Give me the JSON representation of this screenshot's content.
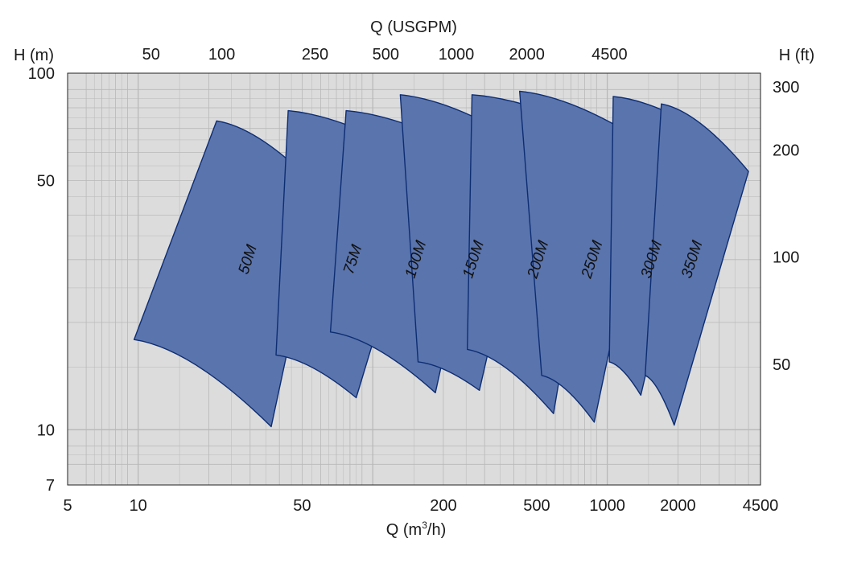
{
  "chart_data": {
    "type": "area",
    "scale": "log-log",
    "grid": true,
    "colors": {
      "plot_bg": "#dcdcdc",
      "grid": "#b8b8b8",
      "area_fill": "#5a74ad",
      "area_stroke": "#0d2d73"
    },
    "x_axis": {
      "label": "Q (m³/h)",
      "label_base": "Q (m",
      "label_sup": "3",
      "label_end": "/h)",
      "range": [
        5,
        4500
      ],
      "ticks": [
        "5",
        "10",
        "50",
        "200",
        "500",
        "1000",
        "2000",
        "4500"
      ],
      "tick_values": [
        5,
        10,
        50,
        200,
        500,
        1000,
        2000,
        4500
      ]
    },
    "x2_axis": {
      "label": "Q (USGPM)",
      "ticks": [
        "50",
        "100",
        "250",
        "500",
        "1000",
        "2000",
        "4500"
      ],
      "tick_values": [
        50,
        100,
        250,
        500,
        1000,
        2000,
        4500
      ]
    },
    "y_axis": {
      "label": "H (m)",
      "range": [
        7,
        100
      ],
      "ticks": [
        "100",
        "50",
        "10",
        "7"
      ],
      "tick_values": [
        100,
        50,
        10,
        7
      ]
    },
    "y2_axis": {
      "label": "H (ft)",
      "ticks": [
        "300",
        "200",
        "100",
        "50"
      ],
      "tick_values": [
        300,
        200,
        100,
        50
      ]
    },
    "series": [
      {
        "name": "50M",
        "q_min_lowH": 9.6,
        "h_min": 17.9,
        "q_max_lowH": 36.9,
        "h_bottom": 10.2,
        "q_min_highH": 21.6,
        "h_max": 73.5,
        "q_max_highH": 60.5,
        "h_right": 46.5
      },
      {
        "name": "75M",
        "q_min_lowH": 38.7,
        "h_min": 16.2,
        "q_max_lowH": 85,
        "h_bottom": 12.3,
        "q_min_highH": 43.6,
        "h_max": 78.5,
        "q_max_highH": 170,
        "h_right": 55.5
      },
      {
        "name": "100M",
        "q_min_lowH": 66,
        "h_min": 18.8,
        "q_max_lowH": 185,
        "h_bottom": 12.7,
        "q_min_highH": 77,
        "h_max": 78.5,
        "q_max_highH": 305,
        "h_right": 56.5
      },
      {
        "name": "150M",
        "q_min_lowH": 156,
        "h_min": 15.5,
        "q_max_lowH": 285,
        "h_bottom": 12.9,
        "q_min_highH": 131,
        "h_max": 87,
        "q_max_highH": 488,
        "h_right": 60.5
      },
      {
        "name": "200M",
        "q_min_lowH": 253,
        "h_min": 16.8,
        "q_max_lowH": 590,
        "h_bottom": 11.1,
        "q_min_highH": 265,
        "h_max": 87,
        "q_max_highH": 935,
        "h_right": 67.5
      },
      {
        "name": "250M",
        "q_min_lowH": 525,
        "h_min": 14.2,
        "q_max_lowH": 880,
        "h_bottom": 10.5,
        "q_min_highH": 423,
        "h_max": 89,
        "q_max_highH": 1550,
        "h_right": 62
      },
      {
        "name": "300M",
        "q_min_lowH": 1020,
        "h_min": 15.5,
        "q_max_lowH": 1390,
        "h_bottom": 12.5,
        "q_min_highH": 1060,
        "h_max": 86,
        "q_max_highH": 2550,
        "h_right": 69
      },
      {
        "name": "350M",
        "q_min_lowH": 1450,
        "h_min": 14.2,
        "q_max_lowH": 1930,
        "h_bottom": 10.3,
        "q_min_highH": 1700,
        "h_max": 82,
        "q_max_highH": 4000,
        "h_right": 53
      }
    ]
  }
}
